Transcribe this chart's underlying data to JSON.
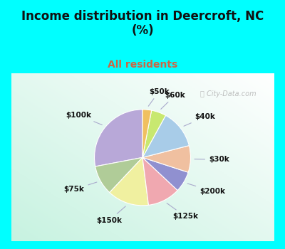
{
  "title": "Income distribution in Deercroft, NC\n(%)",
  "subtitle": "All residents",
  "title_color": "#111111",
  "subtitle_color": "#cc6644",
  "background_cyan": "#00ffff",
  "watermark": "City-Data.com",
  "labels": [
    "$100k",
    "$75k",
    "$150k",
    "$125k",
    "$200k",
    "$30k",
    "$40k",
    "$60k",
    "$50k"
  ],
  "values": [
    28,
    10,
    14,
    11,
    7,
    9,
    13,
    5,
    3
  ],
  "colors": [
    "#b8a8d8",
    "#b0cc98",
    "#f0f0a0",
    "#f0a8b0",
    "#9090d0",
    "#f0c0a0",
    "#a8cce8",
    "#c8e870",
    "#f0c060"
  ],
  "startangle": 90,
  "figsize": [
    4.0,
    3.5
  ],
  "dpi": 100,
  "title_fontsize": 12,
  "subtitle_fontsize": 10,
  "label_fontsize": 7.5
}
